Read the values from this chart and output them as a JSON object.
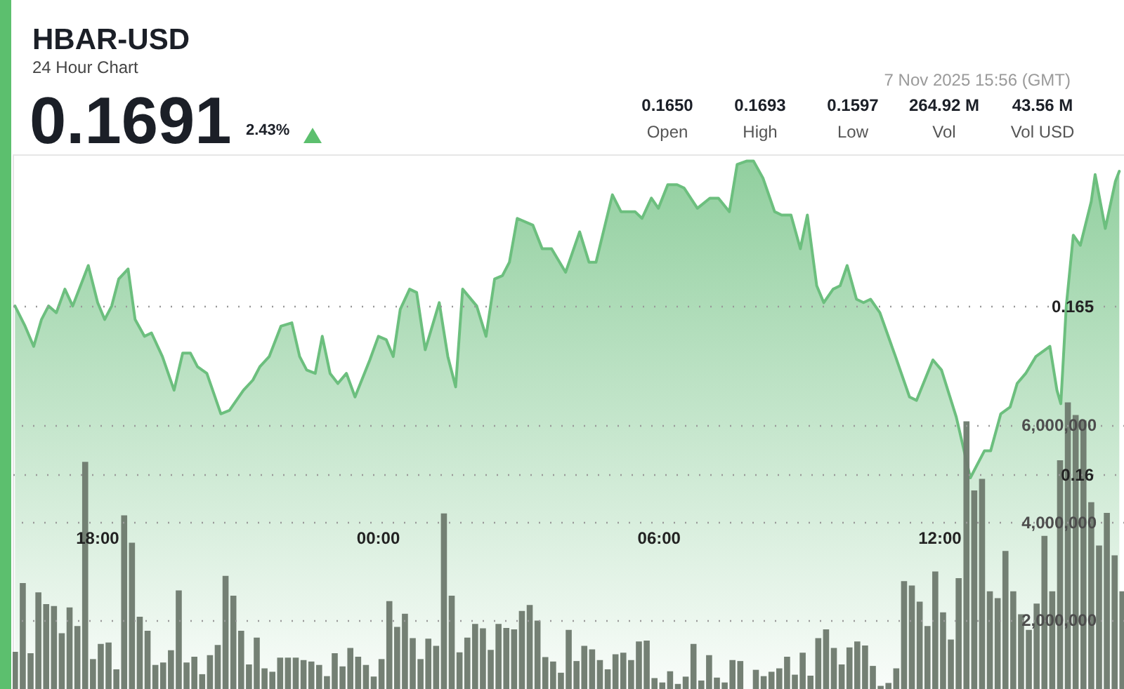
{
  "chart_data": {
    "type": "area",
    "title": "HBAR-USD",
    "subtitle": "24 Hour Chart",
    "annotations": [
      "0.1691",
      "2.43%",
      "0.1650",
      "Open",
      "0.1693",
      "High",
      "0.1597",
      "Low",
      "264.92 M",
      "Vol",
      "43.56 M",
      "Vol USD",
      "7 Nov 2025 15:56 (GMT)"
    ],
    "xlim": [
      "2025-11-06T16:12",
      "2025-11-07T15:57"
    ],
    "xticks": [
      {
        "value": "2025-11-06T18:00",
        "label": "18:00"
      },
      {
        "value": "2025-11-07T00:00",
        "label": "00:00"
      },
      {
        "value": "2025-11-07T06:00",
        "label": "06:00"
      },
      {
        "value": "2025-11-07T12:00",
        "label": "12:00"
      }
    ],
    "ylim": [
      0.1528,
      0.1695
    ],
    "yticks": [
      0.16,
      0.165
    ],
    "y2lim": [
      0,
      11550000
    ],
    "y2ticks": [
      {
        "value": 2000000,
        "label": "2,000,000"
      },
      {
        "value": 4000000,
        "label": "4,000,000"
      },
      {
        "value": 6000000,
        "label": "6,000,000"
      }
    ],
    "grid": "y",
    "series": [
      {
        "color": "#6cbf7e",
        "x": [
          "2025-11-06T16:15",
          "2025-11-06T16:28",
          "2025-11-06T16:39",
          "2025-11-06T16:49",
          "2025-11-06T16:58",
          "2025-11-06T17:08",
          "2025-11-06T17:19",
          "2025-11-06T17:29",
          "2025-11-06T17:49",
          "2025-11-06T18:01",
          "2025-11-06T18:10",
          "2025-11-06T18:19",
          "2025-11-06T18:28",
          "2025-11-06T18:40",
          "2025-11-06T18:49",
          "2025-11-06T19:01",
          "2025-11-06T19:10",
          "2025-11-06T19:24",
          "2025-11-06T19:39",
          "2025-11-06T19:50",
          "2025-11-06T20:00",
          "2025-11-06T20:09",
          "2025-11-06T20:21",
          "2025-11-06T20:39",
          "2025-11-06T20:50",
          "2025-11-06T21:08",
          "2025-11-06T21:20",
          "2025-11-06T21:29",
          "2025-11-06T21:41",
          "2025-11-06T21:56",
          "2025-11-06T22:10",
          "2025-11-06T22:20",
          "2025-11-06T22:29",
          "2025-11-06T22:40",
          "2025-11-06T22:49",
          "2025-11-06T22:59",
          "2025-11-06T23:09",
          "2025-11-06T23:20",
          "2025-11-06T23:31",
          "2025-11-06T23:50",
          "2025-11-07T00:01",
          "2025-11-07T00:11",
          "2025-11-07T00:20",
          "2025-11-07T00:29",
          "2025-11-07T00:41",
          "2025-11-07T00:50",
          "2025-11-07T01:01",
          "2025-11-07T01:19",
          "2025-11-07T01:30",
          "2025-11-07T01:40",
          "2025-11-07T01:49",
          "2025-11-07T02:07",
          "2025-11-07T02:19",
          "2025-11-07T02:30",
          "2025-11-07T02:40",
          "2025-11-07T02:49",
          "2025-11-07T02:59",
          "2025-11-07T03:19",
          "2025-11-07T03:31",
          "2025-11-07T03:43",
          "2025-11-07T04:01",
          "2025-11-07T04:19",
          "2025-11-07T04:31",
          "2025-11-07T04:40",
          "2025-11-07T05:01",
          "2025-11-07T05:12",
          "2025-11-07T05:30",
          "2025-11-07T05:39",
          "2025-11-07T05:51",
          "2025-11-07T06:00",
          "2025-11-07T06:12",
          "2025-11-07T06:24",
          "2025-11-07T06:33",
          "2025-11-07T06:50",
          "2025-11-07T07:06",
          "2025-11-07T07:17",
          "2025-11-07T07:31",
          "2025-11-07T07:41",
          "2025-11-07T07:53",
          "2025-11-07T08:02",
          "2025-11-07T08:14",
          "2025-11-07T08:29",
          "2025-11-07T08:38",
          "2025-11-07T08:50",
          "2025-11-07T09:02",
          "2025-11-07T09:11",
          "2025-11-07T09:23",
          "2025-11-07T09:32",
          "2025-11-07T09:44",
          "2025-11-07T09:53",
          "2025-11-07T10:02",
          "2025-11-07T10:14",
          "2025-11-07T10:23",
          "2025-11-07T10:32",
          "2025-11-07T10:44",
          "2025-11-07T11:04",
          "2025-11-07T11:22",
          "2025-11-07T11:31",
          "2025-11-07T11:52",
          "2025-11-07T12:03",
          "2025-11-07T12:22",
          "2025-11-07T12:40",
          "2025-11-07T12:58",
          "2025-11-07T13:06",
          "2025-11-07T13:19",
          "2025-11-07T13:31",
          "2025-11-07T13:40",
          "2025-11-07T13:51",
          "2025-11-07T14:04",
          "2025-11-07T14:22",
          "2025-11-07T14:31",
          "2025-11-07T14:36",
          "2025-11-07T14:43",
          "2025-11-07T14:52",
          "2025-11-07T15:01",
          "2025-11-07T15:15",
          "2025-11-07T15:20",
          "2025-11-07T15:33",
          "2025-11-07T15:46",
          "2025-11-07T15:51"
        ],
        "values": [
          0.165,
          0.1644,
          0.1638,
          0.1646,
          0.165,
          0.1648,
          0.1655,
          0.165,
          0.1662,
          0.1651,
          0.1646,
          0.165,
          0.1658,
          0.1661,
          0.1646,
          0.1641,
          0.1642,
          0.1635,
          0.1625,
          0.1636,
          0.1636,
          0.1632,
          0.163,
          0.1618,
          0.1619,
          0.1625,
          0.1628,
          0.1632,
          0.1635,
          0.1644,
          0.1645,
          0.1635,
          0.1631,
          0.163,
          0.1641,
          0.163,
          0.1627,
          0.163,
          0.1623,
          0.1634,
          0.1641,
          0.164,
          0.1635,
          0.1649,
          0.1655,
          0.1654,
          0.1637,
          0.1651,
          0.1635,
          0.1626,
          0.1655,
          0.165,
          0.1641,
          0.1658,
          0.1659,
          0.1663,
          0.1676,
          0.1674,
          0.1667,
          0.1667,
          0.166,
          0.1672,
          0.1663,
          0.1663,
          0.1683,
          0.1678,
          0.1678,
          0.1676,
          0.1682,
          0.1679,
          0.1686,
          0.1686,
          0.1685,
          0.1679,
          0.1682,
          0.1682,
          0.1678,
          0.1692,
          0.1693,
          0.1693,
          0.1688,
          0.1678,
          0.1677,
          0.1677,
          0.1667,
          0.1677,
          0.1656,
          0.1651,
          0.1655,
          0.1656,
          0.1662,
          0.1652,
          0.1651,
          0.1652,
          0.1648,
          0.1635,
          0.1623,
          0.1622,
          0.1634,
          0.1631,
          0.1617,
          0.1599,
          0.1607,
          0.1607,
          0.1618,
          0.162,
          0.1627,
          0.163,
          0.1635,
          0.1638,
          0.1625,
          0.1621,
          0.165,
          0.1671,
          0.1668,
          0.1681,
          0.1689,
          0.1673,
          0.1687,
          0.169
        ]
      },
      {
        "type": "bar",
        "axis": "y2",
        "color": "#6f7c70",
        "x": [
          "2025-11-06T16:15",
          "2025-11-06T16:25",
          "2025-11-06T16:35",
          "2025-11-06T16:45",
          "2025-11-06T16:55",
          "2025-11-06T17:05",
          "2025-11-06T17:15",
          "2025-11-06T17:25",
          "2025-11-06T17:35",
          "2025-11-06T17:45",
          "2025-11-06T17:55",
          "2025-11-06T18:05",
          "2025-11-06T18:15",
          "2025-11-06T18:25",
          "2025-11-06T18:35",
          "2025-11-06T18:45",
          "2025-11-06T18:55",
          "2025-11-06T19:05",
          "2025-11-06T19:15",
          "2025-11-06T19:25",
          "2025-11-06T19:35",
          "2025-11-06T19:45",
          "2025-11-06T19:55",
          "2025-11-06T20:05",
          "2025-11-06T20:15",
          "2025-11-06T20:25",
          "2025-11-06T20:35",
          "2025-11-06T20:45",
          "2025-11-06T20:55",
          "2025-11-06T21:05",
          "2025-11-06T21:15",
          "2025-11-06T21:25",
          "2025-11-06T21:35",
          "2025-11-06T21:45",
          "2025-11-06T21:55",
          "2025-11-06T22:05",
          "2025-11-06T22:15",
          "2025-11-06T22:25",
          "2025-11-06T22:35",
          "2025-11-06T22:45",
          "2025-11-06T22:55",
          "2025-11-06T23:05",
          "2025-11-06T23:15",
          "2025-11-06T23:25",
          "2025-11-06T23:35",
          "2025-11-06T23:45",
          "2025-11-06T23:55",
          "2025-11-07T00:05",
          "2025-11-07T00:15",
          "2025-11-07T00:25",
          "2025-11-07T00:35",
          "2025-11-07T00:45",
          "2025-11-07T00:55",
          "2025-11-07T01:05",
          "2025-11-07T01:15",
          "2025-11-07T01:25",
          "2025-11-07T01:35",
          "2025-11-07T01:45",
          "2025-11-07T01:55",
          "2025-11-07T02:05",
          "2025-11-07T02:15",
          "2025-11-07T02:25",
          "2025-11-07T02:35",
          "2025-11-07T02:45",
          "2025-11-07T02:55",
          "2025-11-07T03:05",
          "2025-11-07T03:15",
          "2025-11-07T03:25",
          "2025-11-07T03:35",
          "2025-11-07T03:45",
          "2025-11-07T03:55",
          "2025-11-07T04:05",
          "2025-11-07T04:15",
          "2025-11-07T04:25",
          "2025-11-07T04:35",
          "2025-11-07T04:45",
          "2025-11-07T04:55",
          "2025-11-07T05:05",
          "2025-11-07T05:15",
          "2025-11-07T05:25",
          "2025-11-07T05:35",
          "2025-11-07T05:45",
          "2025-11-07T05:55",
          "2025-11-07T06:05",
          "2025-11-07T06:15",
          "2025-11-07T06:25",
          "2025-11-07T06:35",
          "2025-11-07T06:45",
          "2025-11-07T06:55",
          "2025-11-07T07:05",
          "2025-11-07T07:15",
          "2025-11-07T07:25",
          "2025-11-07T07:35",
          "2025-11-07T07:45",
          "2025-11-07T07:55",
          "2025-11-07T08:05",
          "2025-11-07T08:15",
          "2025-11-07T08:25",
          "2025-11-07T08:35",
          "2025-11-07T08:45",
          "2025-11-07T08:55",
          "2025-11-07T09:05",
          "2025-11-07T09:15",
          "2025-11-07T09:25",
          "2025-11-07T09:35",
          "2025-11-07T09:45",
          "2025-11-07T09:55",
          "2025-11-07T10:05",
          "2025-11-07T10:15",
          "2025-11-07T10:25",
          "2025-11-07T10:35",
          "2025-11-07T10:45",
          "2025-11-07T10:55",
          "2025-11-07T11:05",
          "2025-11-07T11:15",
          "2025-11-07T11:25",
          "2025-11-07T11:35",
          "2025-11-07T11:45",
          "2025-11-07T11:55",
          "2025-11-07T12:05",
          "2025-11-07T12:15",
          "2025-11-07T12:25",
          "2025-11-07T12:35",
          "2025-11-07T12:45",
          "2025-11-07T12:55",
          "2025-11-07T13:05",
          "2025-11-07T13:15",
          "2025-11-07T13:25",
          "2025-11-07T13:35",
          "2025-11-07T13:45",
          "2025-11-07T13:55",
          "2025-11-07T14:05",
          "2025-11-07T14:15",
          "2025-11-07T14:25",
          "2025-11-07T14:35",
          "2025-11-07T14:45",
          "2025-11-07T14:55",
          "2025-11-07T15:05",
          "2025-11-07T15:15",
          "2025-11-07T15:25",
          "2025-11-07T15:35",
          "2025-11-07T15:45",
          "2025-11-07T15:55"
        ],
        "values": [
          1340000,
          2750000,
          1310000,
          2560000,
          2320000,
          2280000,
          1720000,
          2250000,
          1870000,
          5240000,
          1190000,
          1500000,
          1530000,
          980000,
          4140000,
          3580000,
          2060000,
          1770000,
          1070000,
          1120000,
          1370000,
          2600000,
          1120000,
          1240000,
          880000,
          1270000,
          1480000,
          2900000,
          2490000,
          1770000,
          1080000,
          1630000,
          1000000,
          930000,
          1220000,
          1220000,
          1220000,
          1170000,
          1140000,
          1070000,
          840000,
          1310000,
          1040000,
          1420000,
          1240000,
          1070000,
          830000,
          1190000,
          2380000,
          1850000,
          2120000,
          1620000,
          1190000,
          1610000,
          1460000,
          4180000,
          2490000,
          1330000,
          1630000,
          1910000,
          1820000,
          1380000,
          1910000,
          1830000,
          1800000,
          2180000,
          2300000,
          1980000,
          1230000,
          1140000,
          910000,
          1790000,
          1150000,
          1460000,
          1390000,
          1170000,
          980000,
          1290000,
          1320000,
          1170000,
          1550000,
          1570000,
          800000,
          710000,
          940000,
          680000,
          830000,
          1500000,
          750000,
          1270000,
          810000,
          710000,
          1170000,
          1150000,
          null,
          970000,
          840000,
          930000,
          1000000,
          1240000,
          870000,
          1320000,
          850000,
          1620000,
          1800000,
          1420000,
          1080000,
          1430000,
          1550000,
          1470000,
          1050000,
          640000,
          700000,
          1000000,
          2790000,
          2700000,
          2370000,
          1870000,
          2990000,
          2150000,
          1590000,
          2850000,
          6070000,
          4650000,
          4890000,
          2580000,
          2440000,
          3410000,
          2580000,
          2110000,
          1790000,
          2330000,
          3720000,
          2580000,
          5270000,
          6460000,
          6200000,
          6090000,
          4410000,
          3520000,
          4190000,
          3320000,
          2580000
        ]
      }
    ]
  }
}
